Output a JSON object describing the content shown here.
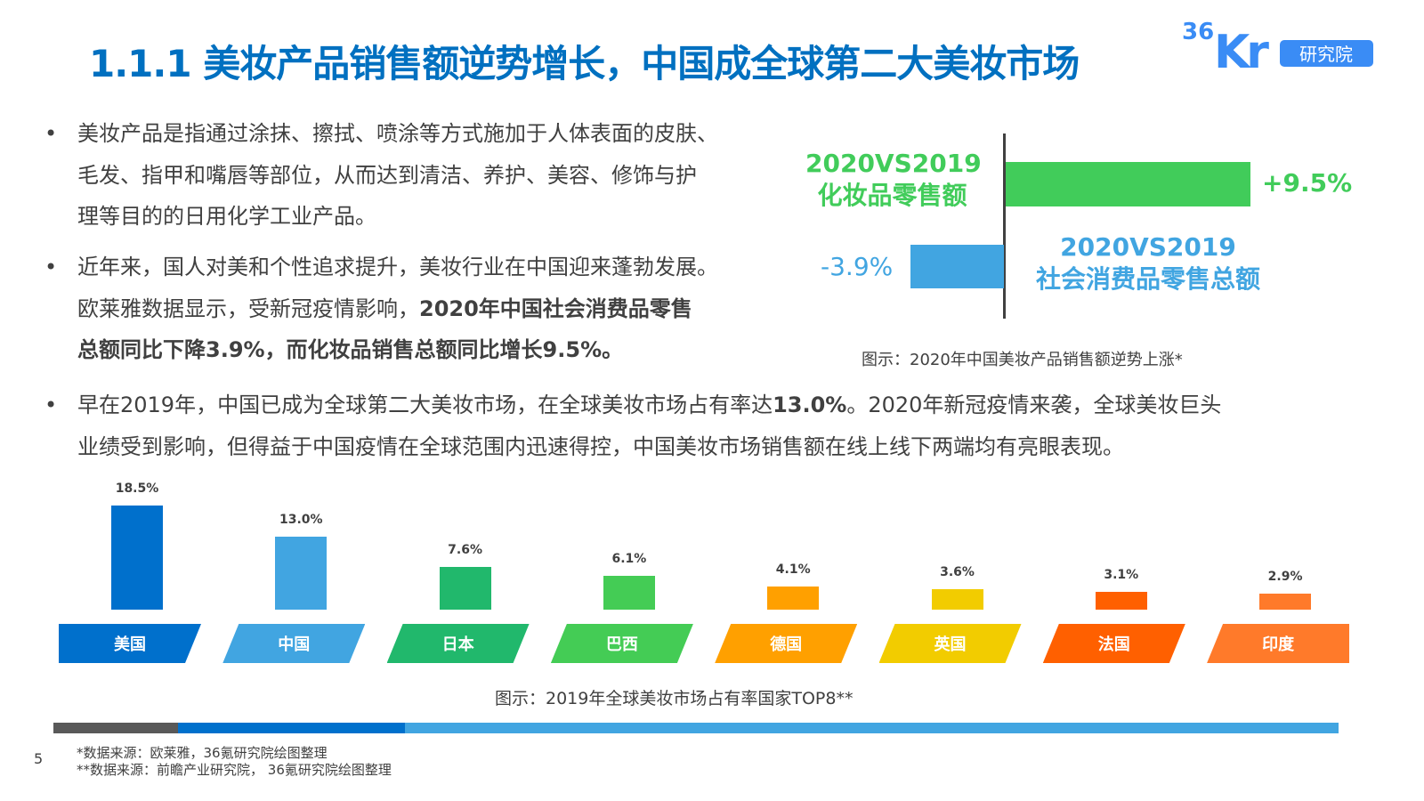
{
  "header": {
    "title": "1.1.1 美妆产品销售额逆势增长，中国成全球第二大美妆市场",
    "logo_text": "36Kr",
    "logo_badge": "研究院"
  },
  "bullets": [
    {
      "lines": [
        "美妆产品是指通过涂抹、擦拭、喷涂等方式施加于人体表面的皮肤、",
        "毛发、指甲和嘴唇等部位，从而达到清洁、养护、美容、修饰与护",
        "理等目的的日用化学工业产品。"
      ]
    },
    {
      "line1": "近年来，国人对美和个性追求提升，美妆行业在中国迎来蓬勃发展。",
      "line2_normal": "欧莱雅数据显示，受新冠疫情影响，",
      "line2_bold": "2020年中国社会消费品零售",
      "line3_bold": "总额同比下降3.9%，而化妆品销售总额同比增长9.5%。"
    },
    {
      "l1a": "早在2019年，中国已成为全球第二大美妆市场，在全球美妆市场占有率达",
      "l1b": "13.0%",
      "l1c": "。2020年新冠疫情来袭，全球美妆巨头",
      "l2": "业绩受到影响，但得益于中国疫情在全球范围内迅速得控，中国美妆市场销售额在线上线下两端均有亮眼表现。"
    }
  ],
  "comparison": {
    "cosmetics": {
      "label1": "2020VS2019",
      "label2": "化妆品零售额",
      "value": 9.5,
      "value_label": "+9.5%",
      "color": "#41cc5a"
    },
    "consumer": {
      "label1": "2020VS2019",
      "label2": "社会消费品零售总额",
      "value": -3.9,
      "value_label": "-3.9%",
      "color": "#41a5e1"
    },
    "caption": "图示：2020年中国美妆产品销售额逆势上涨*"
  },
  "chart_data": {
    "type": "bar",
    "categories": [
      "美国",
      "中国",
      "日本",
      "巴西",
      "德国",
      "英国",
      "法国",
      "印度"
    ],
    "values": [
      18.5,
      13.0,
      7.6,
      6.1,
      4.1,
      3.6,
      3.1,
      2.9
    ],
    "value_labels": [
      "18.5%",
      "13.0%",
      "7.6%",
      "6.1%",
      "4.1%",
      "3.6%",
      "3.1%",
      "2.9%"
    ],
    "colors": [
      "#0070cc",
      "#41a5e1",
      "#21b86c",
      "#44cc55",
      "#ffa000",
      "#f2cc00",
      "#ff6000",
      "#ff7a2a"
    ],
    "caption": "图示：2019年全球美妆市场占有率国家TOP8**"
  },
  "footer": {
    "page": "5",
    "source1": "*数据来源：欧莱雅，36氪研究院绘图整理",
    "source2": "**数据来源：前瞻产业研究院， 36氪研究院绘图整理"
  }
}
